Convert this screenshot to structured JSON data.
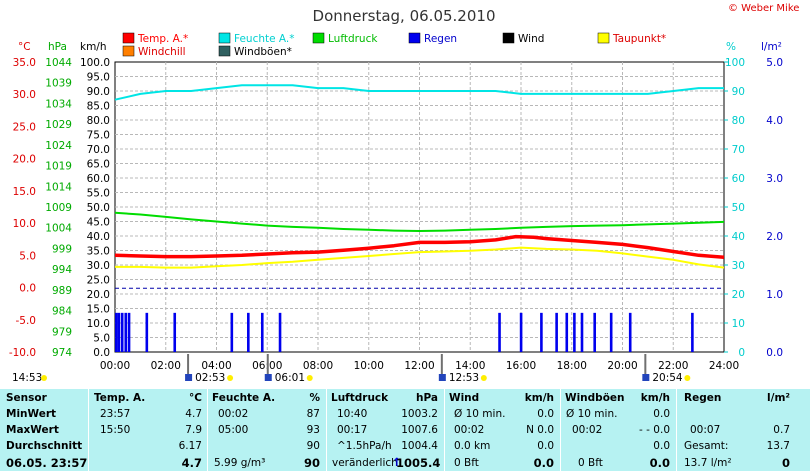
{
  "title": "Donnerstag, 06.05.2010",
  "copyright": "© Weber Mike",
  "legend": [
    {
      "label": "Temp. A.*",
      "color": "#ff0000"
    },
    {
      "label": "Feuchte A.*",
      "color": "#00e5e5"
    },
    {
      "label": "Luftdruck",
      "color": "#00dd00"
    },
    {
      "label": "Regen",
      "color": "#0000ee"
    },
    {
      "label": "Wind",
      "color": "#000000"
    },
    {
      "label": "Taupunkt*",
      "color": "#ffff00"
    },
    {
      "label": "Windchill",
      "color": "#ff7f00"
    },
    {
      "label": "Windböen*",
      "color": "#306060"
    }
  ],
  "axis_units": {
    "temp": "°C",
    "pressure": "hPa",
    "speed": "km/h",
    "humidity": "%",
    "rain": "l/m²"
  },
  "chart_data": {
    "type": "line",
    "x_unit": "hour",
    "xlim": [
      0,
      24
    ],
    "x_ticks": [
      "00:00",
      "02:00",
      "04:00",
      "06:00",
      "08:00",
      "10:00",
      "12:00",
      "14:00",
      "16:00",
      "18:00",
      "20:00",
      "22:00",
      "24:00"
    ],
    "axes": {
      "temp": {
        "ylim": [
          -10,
          35
        ],
        "ticks": [
          "35.0",
          "30.0",
          "25.0",
          "20.0",
          "15.0",
          "10.0",
          "5.0",
          "0.0",
          "-5.0",
          "-10.0"
        ]
      },
      "pressure": {
        "ylim": [
          974,
          1044
        ],
        "ticks": [
          "1044",
          "1039",
          "1034",
          "1029",
          "1024",
          "1019",
          "1014",
          "1009",
          "1004",
          "999",
          "994",
          "989",
          "984",
          "979",
          "974"
        ]
      },
      "speed": {
        "ylim": [
          0,
          100
        ],
        "ticks": [
          "100.0",
          "95.0",
          "90.0",
          "85.0",
          "80.0",
          "75.0",
          "70.0",
          "65.0",
          "60.0",
          "55.0",
          "50.0",
          "45.0",
          "40.0",
          "35.0",
          "30.0",
          "25.0",
          "20.0",
          "15.0",
          "10.0",
          "5.0",
          "0.0"
        ]
      },
      "humidity": {
        "ylim": [
          0,
          100
        ],
        "ticks": [
          "100",
          "90",
          "80",
          "70",
          "60",
          "50",
          "40",
          "30",
          "20",
          "10",
          "0"
        ]
      },
      "rain": {
        "ylim": [
          0,
          5
        ],
        "ticks": [
          "5.0",
          "4.0",
          "3.0",
          "2.0",
          "1.0",
          "0.0"
        ]
      }
    },
    "series": [
      {
        "name": "Temp. A.*",
        "axis": "temp",
        "color": "#ff0000",
        "width": 3.5,
        "x": [
          0,
          1,
          2,
          3,
          4,
          5,
          6,
          7,
          8,
          9,
          10,
          11,
          12,
          13,
          14,
          15,
          15.8,
          16.5,
          17,
          18,
          19,
          20,
          21,
          22,
          23,
          24
        ],
        "y": [
          5.0,
          4.9,
          4.8,
          4.8,
          4.9,
          5.0,
          5.2,
          5.4,
          5.5,
          5.8,
          6.1,
          6.5,
          7.0,
          7.0,
          7.1,
          7.4,
          7.9,
          7.8,
          7.6,
          7.3,
          7.0,
          6.7,
          6.2,
          5.6,
          5.0,
          4.7
        ]
      },
      {
        "name": "Feuchte A.*",
        "axis": "humidity",
        "color": "#00e5e5",
        "width": 2,
        "x": [
          0,
          0.5,
          1,
          2,
          3,
          4,
          5,
          6,
          7,
          8,
          9,
          10,
          11,
          12,
          13,
          14,
          15,
          16,
          17,
          18,
          19,
          20,
          21,
          22,
          23,
          24
        ],
        "y": [
          87,
          88,
          89,
          90,
          90,
          91,
          92,
          92,
          92,
          91,
          91,
          90,
          90,
          90,
          90,
          90,
          90,
          89,
          89,
          89,
          89,
          89,
          89,
          90,
          91,
          91
        ]
      },
      {
        "name": "Luftdruck",
        "axis": "pressure",
        "color": "#00dd00",
        "width": 2,
        "x": [
          0,
          1,
          2,
          3,
          4,
          5,
          6,
          7,
          8,
          9,
          10,
          11,
          12,
          13,
          14,
          15,
          16,
          17,
          18,
          19,
          20,
          21,
          22,
          23,
          24
        ],
        "y": [
          1007.6,
          1007.2,
          1006.6,
          1006.0,
          1005.5,
          1005.0,
          1004.5,
          1004.2,
          1004.0,
          1003.7,
          1003.5,
          1003.3,
          1003.2,
          1003.3,
          1003.5,
          1003.7,
          1004.0,
          1004.2,
          1004.4,
          1004.5,
          1004.6,
          1004.8,
          1005.0,
          1005.2,
          1005.4
        ]
      },
      {
        "name": "Taupunkt*",
        "axis": "temp",
        "color": "#ffff00",
        "width": 2,
        "x": [
          0,
          1,
          2,
          3,
          4,
          5,
          6,
          7,
          8,
          9,
          10,
          11,
          12,
          13,
          14,
          15,
          16,
          17,
          18,
          19,
          20,
          21,
          22,
          23,
          24
        ],
        "y": [
          3.2,
          3.2,
          3.1,
          3.1,
          3.3,
          3.5,
          3.8,
          4.0,
          4.3,
          4.6,
          4.9,
          5.2,
          5.5,
          5.6,
          5.7,
          5.9,
          6.2,
          6.0,
          5.9,
          5.7,
          5.3,
          4.8,
          4.3,
          3.6,
          3.1
        ]
      }
    ],
    "rain_bars_hours": [
      0.05,
      0.15,
      0.28,
      0.42,
      0.55,
      1.25,
      2.35,
      4.6,
      5.25,
      5.8,
      6.5,
      15.15,
      16.0,
      16.8,
      17.4,
      17.8,
      18.1,
      18.4,
      18.9,
      19.55,
      20.3,
      22.75
    ],
    "rain_bar_kmh": 13.5,
    "dashed_line_kmh": 22
  },
  "sun_markers": [
    {
      "label": "14:53",
      "hour": -0.1
    },
    {
      "label": "02:53",
      "hour": 2.88
    },
    {
      "label": "06:01",
      "hour": 6.02
    },
    {
      "label": "12:53",
      "hour": 12.88
    },
    {
      "label": "20:54",
      "hour": 20.9
    }
  ],
  "stats": {
    "headers": {
      "sensor": "Sensor",
      "temp": "Temp. A.",
      "temp_unit": "°C",
      "hum": "Feuchte A.",
      "hum_unit": "%",
      "press": "Luftdruck",
      "press_unit": "hPa",
      "wind": "Wind",
      "wind_unit": "km/h",
      "gust": "Windböen",
      "gust_unit": "km/h",
      "rain": "Regen",
      "rain_unit": "l/m²"
    },
    "min": {
      "label": "MinWert",
      "temp_time": "23:57",
      "temp": "4.7",
      "hum_time": "00:02",
      "hum": "87",
      "press_time": "10:40",
      "press": "1003.2",
      "wind_time": "Ø 10 min.",
      "wind": "0.0",
      "gust_time": "Ø 10 min.",
      "gust": "0.0"
    },
    "max": {
      "label": "MaxWert",
      "temp_time": "15:50",
      "temp": "7.9",
      "hum_time": "05:00",
      "hum": "93",
      "press_time": "00:17",
      "press": "1007.6",
      "wind_time": "00:02",
      "wind": "N 0.0",
      "gust_time": "00:02",
      "gust": "- - 0.0",
      "rain_time": "00:07",
      "rain": "0.7"
    },
    "avg": {
      "label": "Durchschnitt",
      "temp": "6.17",
      "hum": "90",
      "press_time": "^1.5hPa/h",
      "press": "1004.4",
      "wind_time": "0.0 km",
      "wind": "0.0",
      "gust": "0.0",
      "rain_time": "Gesamt:",
      "rain": "13.7"
    },
    "current": {
      "label": "06.05. 23:57",
      "temp": "4.7",
      "hum_time": "5.99 g/m³",
      "hum": "90",
      "press_time": "veränderlich",
      "press": "1005.4",
      "wind_time": "0 Bft",
      "wind": "0.0",
      "gust_time": "0 Bft",
      "gust": "0.0",
      "rain_time": "13.7 l/m²",
      "rain": "0"
    }
  }
}
